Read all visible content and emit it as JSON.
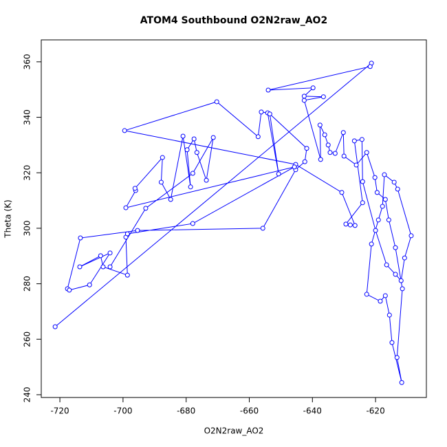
{
  "chart_data": {
    "type": "line_points",
    "title": "ATOM4 Southbound O2N2raw_AO2",
    "x_label": "O2N2raw_AO2",
    "y_label": "Theta (K)",
    "color": "#0000ff",
    "x": [
      -721.5,
      -621.3,
      -621.7,
      -654.0,
      -639.8,
      -642.6,
      -636.5,
      -642.6,
      -637.4,
      -637.6,
      -636.1,
      -635.0,
      -634.4,
      -632.8,
      -630.2,
      -630.0,
      -626.1,
      -622.8,
      -620.2,
      -619.5,
      -616.9,
      -615.8,
      -613.7,
      -611.5,
      -613.2,
      -611.7,
      -614.8,
      -615.6,
      -616.9,
      -618.5,
      -622.8,
      -621.3,
      -619.1,
      -617.8,
      -617.2,
      -614.1,
      -613.0,
      -608.7,
      -610.8,
      -611.9,
      -613.7,
      -616.5,
      -620.0,
      -624.1,
      -624.3,
      -626.7,
      -624.1,
      -629.4,
      -628.0,
      -626.5,
      -630.7,
      -645.3,
      -699.5,
      -670.3,
      -657.2,
      -656.2,
      -654.2,
      -650.7,
      -653.5,
      -641.8,
      -642.4,
      -645.3,
      -655.7,
      -695.4,
      -713.5,
      -717.6,
      -717.0,
      -710.6,
      -704.1,
      -713.7,
      -707.1,
      -706.3,
      -698.6,
      -699.1,
      -698.6,
      -677.9,
      -645.7,
      -699.1,
      -696.0,
      -696.2,
      -687.5,
      -687.9,
      -684.9,
      -681.0,
      -678.6,
      -679.7,
      -677.5,
      -676.6,
      -673.6,
      -671.4,
      -677.9,
      -692.8,
      -704.1
    ],
    "values": [
      264.5,
      359.5,
      358.3,
      349.8,
      350.6,
      347.6,
      347.4,
      346.1,
      324.8,
      337.2,
      333.7,
      330.0,
      327.3,
      327.0,
      334.5,
      326.0,
      322.8,
      327.3,
      318.3,
      312.9,
      310.4,
      303.0,
      293.0,
      278.2,
      253.4,
      244.4,
      258.8,
      268.7,
      275.7,
      273.7,
      276.2,
      294.3,
      303.0,
      307.9,
      319.3,
      316.6,
      314.1,
      297.3,
      289.3,
      281.1,
      283.4,
      286.8,
      299.2,
      316.8,
      332.0,
      331.5,
      309.2,
      301.5,
      301.2,
      301.0,
      312.9,
      323.0,
      335.2,
      345.6,
      333.0,
      341.9,
      341.6,
      319.6,
      341.2,
      328.8,
      324.0,
      321.1,
      300.0,
      299.2,
      296.5,
      278.2,
      277.7,
      279.6,
      291.1,
      286.1,
      290.1,
      286.1,
      283.1,
      296.8,
      298.0,
      301.7,
      322.1,
      307.4,
      313.6,
      314.4,
      325.5,
      316.6,
      310.4,
      333.2,
      314.9,
      328.3,
      332.2,
      327.3,
      317.3,
      332.7,
      319.8,
      307.2,
      286.1
    ],
    "xlim": [
      -725.9,
      -603.9
    ],
    "ylim": [
      239.0,
      367.9
    ],
    "xticks": [
      -720,
      -700,
      -680,
      -660,
      -640,
      -620
    ],
    "yticks": [
      240,
      260,
      280,
      300,
      320,
      340,
      360
    ]
  }
}
